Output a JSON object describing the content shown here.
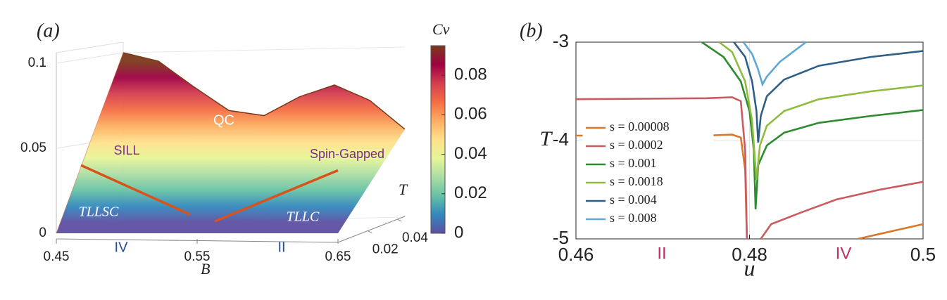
{
  "chart_data": [
    {
      "type": "surface",
      "panel_label": "(a)",
      "xlabel": "B",
      "ylabel": "T",
      "colorbar_label": "Cv",
      "xlim": [
        0.45,
        0.65
      ],
      "xticks": [
        0.45,
        0.55,
        0.65
      ],
      "ylim": [
        0,
        0.045
      ],
      "yticks": [
        0.02,
        0.04
      ],
      "zlim": [
        0,
        0.1
      ],
      "zticks": [
        0,
        0.05,
        0.1
      ],
      "clim": [
        0,
        0.095
      ],
      "cticks": [
        0,
        0.02,
        0.04,
        0.06,
        0.08
      ],
      "colormap": [
        "#5e4fa2",
        "#3288bd",
        "#66c2a5",
        "#abdda4",
        "#e6f598",
        "#fee08b",
        "#fdae61",
        "#f46d43",
        "#d53e4f",
        "#9e0142",
        "#7b3a1a"
      ],
      "x": [
        0.45,
        0.475,
        0.5,
        0.525,
        0.55,
        0.575,
        0.6,
        0.625,
        0.65
      ],
      "values": [
        0.1,
        0.095,
        0.08,
        0.066,
        0.063,
        0.074,
        0.081,
        0.072,
        0.055
      ],
      "lines": [
        {
          "color": "#d95319",
          "x": [
            0.4675,
            0.545
          ],
          "values": [
            0.04,
            0.011
          ]
        },
        {
          "color": "#d95319",
          "x": [
            0.5625,
            0.65
          ],
          "values": [
            0.007,
            0.037
          ]
        }
      ],
      "annotations": [
        {
          "text": "SILL",
          "color": "#7b2d8e"
        },
        {
          "text": "QC",
          "color": "#ffffff"
        },
        {
          "text": "Spin-Gapped",
          "color": "#7b2d8e"
        },
        {
          "text": "TLLSC",
          "color": "#ffffff"
        },
        {
          "text": "TLLC",
          "color": "#ffffff"
        },
        {
          "text": "IV",
          "color": "#1f4e9a"
        },
        {
          "text": "II",
          "color": "#1f4e9a"
        }
      ]
    },
    {
      "type": "line",
      "panel_label": "(b)",
      "xlabel": "u",
      "ylabel": "T",
      "xlim": [
        0.46,
        0.5
      ],
      "xticks": [
        0.46,
        0.48,
        0.5
      ],
      "ylim": [
        -5,
        -3
      ],
      "yticks": [
        -3,
        -4,
        -5
      ],
      "grid": true,
      "legend": "left",
      "series": [
        {
          "name": "s = 0.00008",
          "color": "#d9772b",
          "x": [
            0.46,
            0.475,
            0.478,
            0.479,
            0.4795,
            0.4797,
            null,
            0.4925,
            0.496,
            0.5
          ],
          "values": [
            -3.95,
            -3.95,
            -3.94,
            -3.97,
            -4.3,
            -5,
            null,
            -5,
            -4.93,
            -4.85
          ]
        },
        {
          "name": "s = 0.0002",
          "color": "#cc5a5e",
          "x": [
            0.46,
            0.475,
            0.478,
            0.479,
            0.4795,
            0.4797,
            null,
            0.4813,
            0.4825,
            0.486,
            0.49,
            0.495,
            0.5
          ],
          "values": [
            -3.58,
            -3.57,
            -3.56,
            -3.6,
            -4.1,
            -5,
            null,
            -5,
            -4.85,
            -4.73,
            -4.6,
            -4.5,
            -4.42
          ]
        },
        {
          "name": "s = 0.001",
          "color": "#2e8b2e",
          "x": [
            0.4745,
            0.477,
            0.479,
            0.48,
            0.4805,
            0.4807,
            0.481,
            0.482,
            0.484,
            0.488,
            0.494,
            0.5
          ],
          "values": [
            -3,
            -3.15,
            -3.4,
            -3.7,
            -4.1,
            -4.7,
            -4.25,
            -4.05,
            -3.92,
            -3.82,
            -3.75,
            -3.69
          ]
        },
        {
          "name": "s = 0.0018",
          "color": "#8fbc3f",
          "x": [
            0.4765,
            0.478,
            0.4795,
            0.4803,
            0.4808,
            0.4812,
            0.482,
            0.484,
            0.488,
            0.494,
            0.5
          ],
          "values": [
            -3,
            -3.1,
            -3.4,
            -3.8,
            -4.4,
            -4.05,
            -3.85,
            -3.7,
            -3.58,
            -3.5,
            -3.44
          ]
        },
        {
          "name": "s = 0.004",
          "color": "#2f5f86",
          "x": [
            0.4782,
            0.4795,
            0.4803,
            0.4808,
            0.481,
            0.4813,
            0.482,
            0.484,
            0.488,
            0.494,
            0.5
          ],
          "values": [
            -3,
            -3.15,
            -3.4,
            -3.7,
            -4.02,
            -3.75,
            -3.55,
            -3.38,
            -3.24,
            -3.15,
            -3.09
          ]
        },
        {
          "name": "s = 0.008",
          "color": "#5fa8d3",
          "x": [
            0.4793,
            0.4803,
            0.481,
            0.4815,
            0.482,
            0.4835,
            0.4865
          ],
          "values": [
            -3,
            -3.12,
            -3.28,
            -3.43,
            -3.35,
            -3.2,
            -3
          ]
        }
      ],
      "annotations": [
        {
          "text": "II",
          "color": "#b8336a"
        },
        {
          "text": "IV",
          "color": "#b8336a"
        }
      ]
    }
  ]
}
